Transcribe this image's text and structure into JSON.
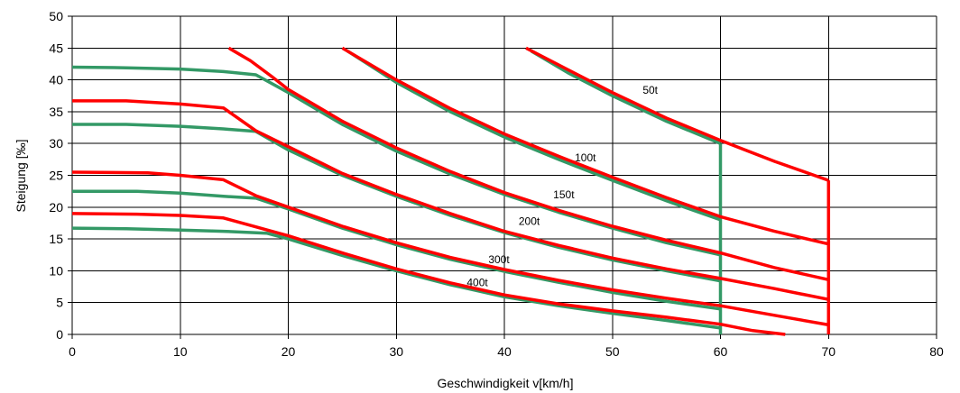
{
  "chart_data": {
    "type": "line",
    "xlabel": "Geschwindigkeit v[km/h]",
    "ylabel": "Steigung [‰]",
    "xlim": [
      0,
      80
    ],
    "ylim": [
      0,
      50
    ],
    "xticks": [
      0,
      10,
      20,
      30,
      40,
      50,
      60,
      70,
      80
    ],
    "yticks": [
      0,
      5,
      10,
      15,
      20,
      25,
      30,
      35,
      40,
      45,
      50
    ],
    "grid": true,
    "colors": {
      "red": "#ff0000",
      "green": "#339966",
      "grid": "#000000"
    },
    "series": [
      {
        "color": "red",
        "points": [
          [
            42,
            45
          ],
          [
            46,
            41.5
          ],
          [
            50,
            38
          ],
          [
            55,
            34
          ],
          [
            60,
            30.5
          ],
          [
            65,
            27.2
          ],
          [
            70,
            24.2
          ]
        ]
      },
      {
        "color": "red",
        "points": [
          [
            70,
            24.2
          ],
          [
            70,
            0
          ]
        ]
      },
      {
        "color": "red",
        "points": [
          [
            25,
            45
          ],
          [
            30,
            40
          ],
          [
            35,
            35.5
          ],
          [
            40,
            31.5
          ],
          [
            45,
            28
          ],
          [
            50,
            24.7
          ],
          [
            55,
            21.5
          ],
          [
            60,
            18.5
          ],
          [
            65,
            16.2
          ],
          [
            70,
            14.2
          ]
        ]
      },
      {
        "color": "red",
        "points": [
          [
            0,
            36.7
          ],
          [
            5,
            36.7
          ],
          [
            10,
            36.2
          ],
          [
            14,
            35.6
          ],
          [
            17,
            32
          ],
          [
            20,
            29.5
          ],
          [
            25,
            25.3
          ],
          [
            30,
            22
          ],
          [
            35,
            19
          ],
          [
            40,
            16.2
          ],
          [
            45,
            14
          ],
          [
            50,
            12
          ],
          [
            55,
            10.3
          ],
          [
            60,
            8.8
          ],
          [
            65,
            7.2
          ],
          [
            70,
            5.5
          ]
        ]
      },
      {
        "color": "red",
        "points": [
          [
            14.5,
            45
          ],
          [
            16.5,
            43
          ],
          [
            18.5,
            40.5
          ],
          [
            20,
            38.5
          ],
          [
            22.5,
            36
          ],
          [
            25,
            33.5
          ],
          [
            30,
            29.3
          ],
          [
            35,
            25.6
          ],
          [
            40,
            22.3
          ],
          [
            45,
            19.5
          ],
          [
            50,
            17
          ],
          [
            55,
            14.8
          ],
          [
            60,
            12.8
          ],
          [
            65,
            10.5
          ],
          [
            70,
            8.6
          ]
        ]
      },
      {
        "color": "red",
        "points": [
          [
            0,
            25.5
          ],
          [
            7,
            25.4
          ],
          [
            10,
            25
          ],
          [
            14,
            24.3
          ],
          [
            17,
            21.8
          ],
          [
            20,
            20
          ],
          [
            25,
            17
          ],
          [
            30,
            14.4
          ],
          [
            35,
            12.1
          ],
          [
            40,
            10.2
          ],
          [
            45,
            8.5
          ],
          [
            50,
            7
          ],
          [
            55,
            5.7
          ],
          [
            60,
            4.5
          ],
          [
            65,
            3
          ],
          [
            70,
            1.5
          ]
        ]
      },
      {
        "color": "red",
        "points": [
          [
            0,
            19
          ],
          [
            6,
            18.9
          ],
          [
            10,
            18.7
          ],
          [
            14,
            18.3
          ],
          [
            17,
            16.9
          ],
          [
            20,
            15.5
          ],
          [
            25,
            12.8
          ],
          [
            30,
            10.3
          ],
          [
            35,
            8.1
          ],
          [
            40,
            6.2
          ],
          [
            45,
            4.8
          ],
          [
            50,
            3.7
          ],
          [
            55,
            2.7
          ],
          [
            60,
            1.6
          ],
          [
            63,
            0.6
          ],
          [
            66,
            0
          ]
        ]
      },
      {
        "color": "green",
        "points": [
          [
            42.5,
            44.5
          ],
          [
            46,
            41
          ],
          [
            50,
            37.5
          ],
          [
            55,
            33.5
          ],
          [
            60,
            30
          ]
        ]
      },
      {
        "color": "green",
        "points": [
          [
            60,
            30
          ],
          [
            60,
            0
          ]
        ]
      },
      {
        "color": "green",
        "points": [
          [
            25.5,
            44.5
          ],
          [
            30,
            39.6
          ],
          [
            35,
            35
          ],
          [
            40,
            31
          ],
          [
            45,
            27.5
          ],
          [
            50,
            24.2
          ],
          [
            55,
            21
          ],
          [
            60,
            18
          ]
        ]
      },
      {
        "color": "green",
        "points": [
          [
            0,
            42
          ],
          [
            5,
            41.9
          ],
          [
            10,
            41.7
          ],
          [
            14,
            41.3
          ],
          [
            17,
            40.8
          ],
          [
            20,
            38
          ],
          [
            22.5,
            35.5
          ],
          [
            25,
            33
          ],
          [
            30,
            28.8
          ],
          [
            35,
            25.2
          ],
          [
            40,
            22
          ],
          [
            45,
            19.2
          ],
          [
            50,
            16.7
          ],
          [
            55,
            14.4
          ],
          [
            60,
            12.5
          ]
        ]
      },
      {
        "color": "green",
        "points": [
          [
            0,
            33
          ],
          [
            5,
            33
          ],
          [
            10,
            32.7
          ],
          [
            14,
            32.3
          ],
          [
            17,
            31.9
          ],
          [
            20,
            29
          ],
          [
            25,
            25
          ],
          [
            30,
            21.7
          ],
          [
            35,
            18.7
          ],
          [
            40,
            16
          ],
          [
            45,
            13.7
          ],
          [
            50,
            11.7
          ],
          [
            55,
            10
          ],
          [
            60,
            8.4
          ]
        ]
      },
      {
        "color": "green",
        "points": [
          [
            0,
            22.5
          ],
          [
            6,
            22.5
          ],
          [
            10,
            22.2
          ],
          [
            14,
            21.7
          ],
          [
            17,
            21.4
          ],
          [
            20,
            19.7
          ],
          [
            25,
            16.7
          ],
          [
            30,
            14.1
          ],
          [
            35,
            11.8
          ],
          [
            40,
            9.9
          ],
          [
            45,
            8.2
          ],
          [
            50,
            6.6
          ],
          [
            55,
            5.2
          ],
          [
            60,
            4
          ]
        ]
      },
      {
        "color": "green",
        "points": [
          [
            0,
            16.7
          ],
          [
            5,
            16.6
          ],
          [
            10,
            16.4
          ],
          [
            14,
            16.2
          ],
          [
            18,
            15.9
          ],
          [
            20,
            15
          ],
          [
            25,
            12.4
          ],
          [
            30,
            10
          ],
          [
            35,
            7.8
          ],
          [
            40,
            5.9
          ],
          [
            45,
            4.5
          ],
          [
            50,
            3.3
          ],
          [
            55,
            2.2
          ],
          [
            60,
            1
          ]
        ]
      }
    ],
    "annotations": [
      {
        "text": "50t",
        "x": 53.5,
        "y": 37.8
      },
      {
        "text": "100t",
        "x": 47.5,
        "y": 27.2
      },
      {
        "text": "150t",
        "x": 45.5,
        "y": 21.4
      },
      {
        "text": "200t",
        "x": 42.3,
        "y": 17.2
      },
      {
        "text": "300t",
        "x": 39.5,
        "y": 11.2
      },
      {
        "text": "400t",
        "x": 37.5,
        "y": 7.6
      }
    ]
  }
}
